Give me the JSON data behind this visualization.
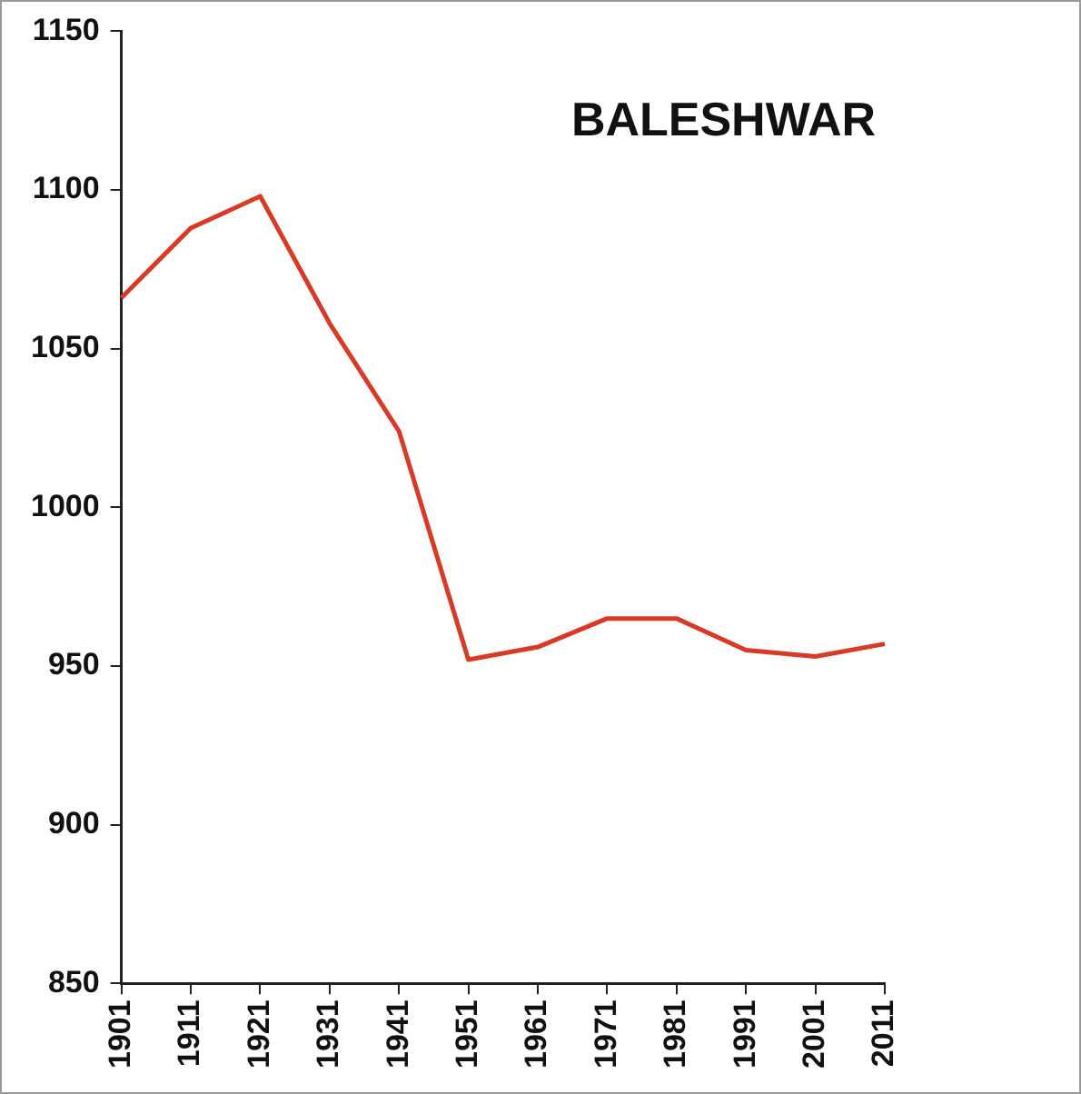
{
  "chart_data": {
    "type": "line",
    "title": "BALESHWAR",
    "categories": [
      "1901",
      "1911",
      "1921",
      "1931",
      "1941",
      "1951",
      "1961",
      "1971",
      "1981",
      "1991",
      "2001",
      "2011"
    ],
    "series": [
      {
        "color": "#d93a26",
        "values": [
          1066,
          1088,
          1098,
          1058,
          1024,
          952,
          956,
          965,
          965,
          955,
          953,
          957
        ]
      }
    ],
    "ylim": [
      850,
      1150
    ],
    "yticks": [
      850,
      900,
      950,
      1000,
      1050,
      1100,
      1150
    ],
    "grid": false,
    "legend": false,
    "marker": "none",
    "line_style": "solid"
  }
}
